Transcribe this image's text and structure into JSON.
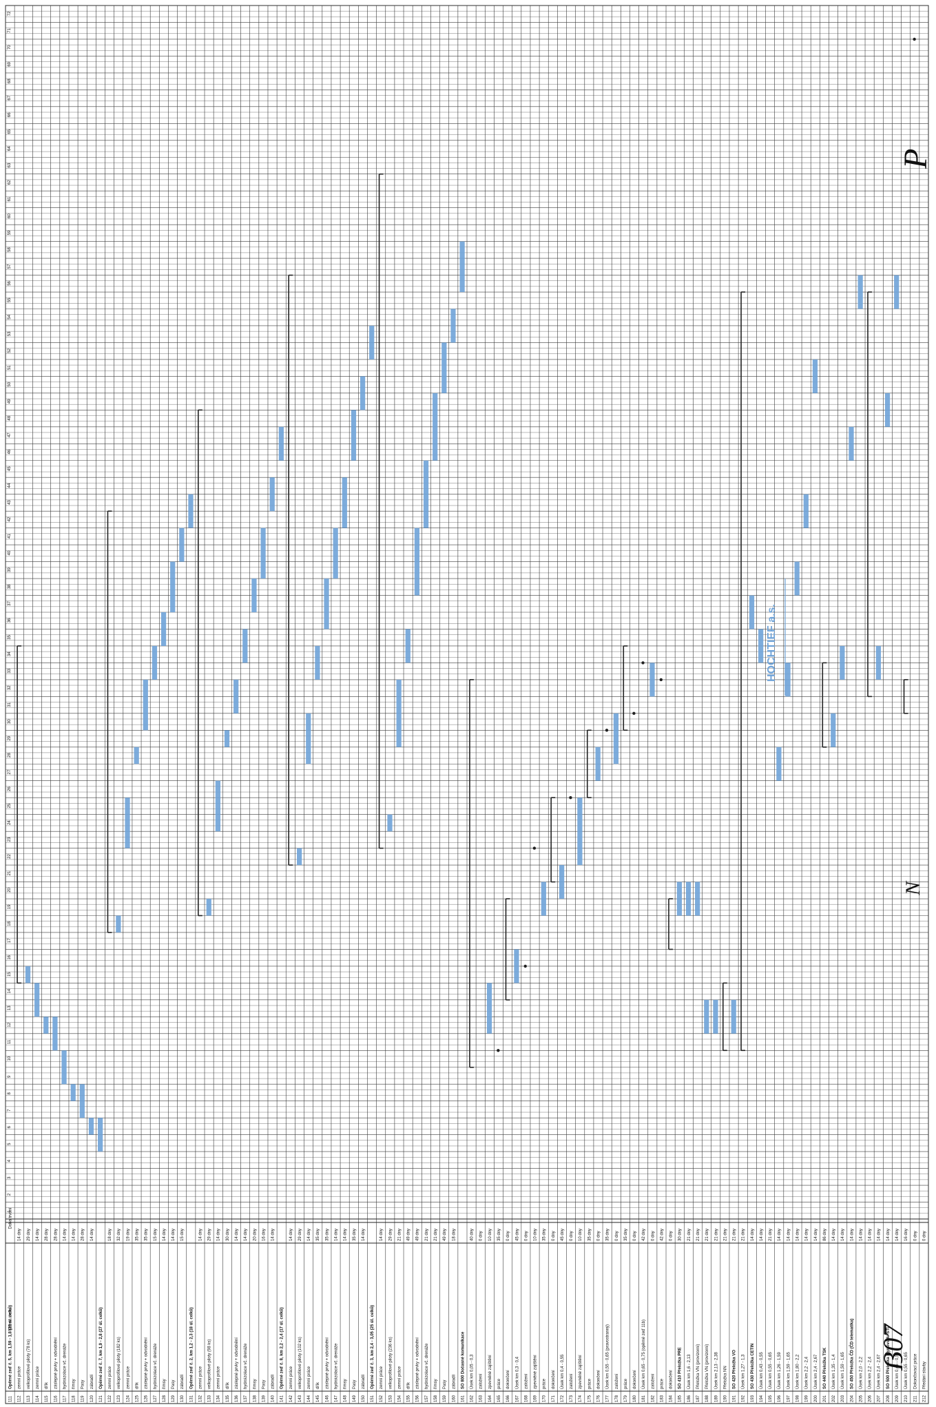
{
  "document": {
    "orientation": "rotated-90",
    "type": "gantt schedule scan"
  },
  "colors": {
    "bar": "#6fa3d8",
    "summary_bracket": "#222222",
    "grid": "#3a3a3a",
    "stamp": "#6fa3d8"
  },
  "header": {
    "column_labels": [
      "Doba trvání",
      "Název úkolu"
    ],
    "timeline_ticks": [
      "1",
      "2",
      "3",
      "4",
      "5",
      "6",
      "7",
      "8",
      "9",
      "10",
      "11",
      "12",
      "13",
      "14",
      "15",
      "16",
      "17",
      "18",
      "19",
      "20",
      "21",
      "22",
      "23",
      "24",
      "25",
      "26",
      "27",
      "28",
      "29",
      "30",
      "31",
      "32",
      "33",
      "34",
      "35",
      "36",
      "37",
      "38",
      "39",
      "40",
      "41",
      "42",
      "43",
      "44",
      "45",
      "46",
      "47",
      "48",
      "49",
      "50",
      "51",
      "52",
      "53",
      "54",
      "55",
      "56",
      "57",
      "58",
      "59",
      "60",
      "61",
      "62",
      "63",
      "64",
      "65",
      "66",
      "67",
      "68",
      "69",
      "70",
      "71",
      "72"
    ]
  },
  "rows": [
    {
      "id": "111",
      "name": "Opěrné zeď č. 5, km 1,59 - 1,8 (15 úl. celků)",
      "duration": "",
      "summary": true
    },
    {
      "id": "112",
      "name": "zemní práce",
      "duration": "14 dny"
    },
    {
      "id": "113",
      "name": "velkoprofilové piloty (78 ks)",
      "duration": "29 dny"
    },
    {
      "id": "114",
      "name": "zemní práce",
      "duration": "14 dny"
    },
    {
      "id": "115",
      "name": "dřík",
      "duration": "28 dny"
    },
    {
      "id": "116",
      "name": "záslepné prvky + odvodnění",
      "duration": "28 dny"
    },
    {
      "id": "117",
      "name": "hydroizolace vč. drenáže",
      "duration": "14 dny"
    },
    {
      "id": "118",
      "name": "římsy",
      "duration": "14 dny"
    },
    {
      "id": "119",
      "name": "Pasy",
      "duration": "28 dny"
    },
    {
      "id": "120",
      "name": "zábradlí",
      "duration": "14 dny"
    },
    {
      "id": "121",
      "name": "Opěrné zeď č. 7, km 1,9 - 2,8 (27 úl. celků)",
      "duration": "",
      "summary": true
    },
    {
      "id": "122",
      "name": "zemní práce",
      "duration": "18 dny"
    },
    {
      "id": "123",
      "name": "velkoprofilové piloty (182 ks)",
      "duration": "32 dny"
    },
    {
      "id": "124",
      "name": "zemní práce",
      "duration": "19 dny"
    },
    {
      "id": "125",
      "name": "dřík",
      "duration": "35 dny"
    },
    {
      "id": "126",
      "name": "záslepné prvky + odvodnění",
      "duration": "35 dny"
    },
    {
      "id": "127",
      "name": "hydroizolace vč. drenáže",
      "duration": "15 dny"
    },
    {
      "id": "128",
      "name": "římsy",
      "duration": "14 dny"
    },
    {
      "id": "129",
      "name": "Pasy",
      "duration": "14 dny"
    },
    {
      "id": "130",
      "name": "zábradlí",
      "duration": "15 dny"
    },
    {
      "id": "131",
      "name": "Opěrné zeď č. 2, km 1,2 - 2,3 (18 úl. celků)",
      "duration": "",
      "summary": true
    },
    {
      "id": "132",
      "name": "zemní práce",
      "duration": "14 dny"
    },
    {
      "id": "133",
      "name": "velkoprofilové piloty (98 ks)",
      "duration": "29 dny"
    },
    {
      "id": "134",
      "name": "zemní práce",
      "duration": "14 dny"
    },
    {
      "id": "135",
      "name": "dřík",
      "duration": "30 dny"
    },
    {
      "id": "136",
      "name": "záslepné prvky + odvodnění",
      "duration": "14 dny"
    },
    {
      "id": "137",
      "name": "hydroizolace vč. drenáže",
      "duration": "14 dny"
    },
    {
      "id": "138",
      "name": "římsy",
      "duration": "20 dny"
    },
    {
      "id": "139",
      "name": "Pasy",
      "duration": "16 dny"
    },
    {
      "id": "140",
      "name": "zábradlí",
      "duration": "14 dny"
    },
    {
      "id": "141",
      "name": "Opěrné zeď č. 8, km 2,2 - 2,4 (17 úl. celků)",
      "duration": "",
      "summary": true
    },
    {
      "id": "142",
      "name": "zemní práce",
      "duration": "14 dny"
    },
    {
      "id": "143",
      "name": "velkoprofilové piloty (102 ks)",
      "duration": "29 dny"
    },
    {
      "id": "144",
      "name": "zemní práce",
      "duration": "14 dny"
    },
    {
      "id": "145",
      "name": "dřík",
      "duration": "35 dny"
    },
    {
      "id": "146",
      "name": "záslepné prvky + odvodnění",
      "duration": "35 dny"
    },
    {
      "id": "147",
      "name": "hydroizolace vč. drenáže",
      "duration": "14 dny"
    },
    {
      "id": "148",
      "name": "římsy",
      "duration": "14 dny"
    },
    {
      "id": "149",
      "name": "Pasy",
      "duration": "35 dny"
    },
    {
      "id": "150",
      "name": "zábradlí",
      "duration": "14 dny"
    },
    {
      "id": "151",
      "name": "Opěrné zeď č. 3, km 2,4 - 3,05 (25 úl. celků)",
      "duration": "",
      "summary": true
    },
    {
      "id": "152",
      "name": "zemní práce",
      "duration": "14 dny"
    },
    {
      "id": "153",
      "name": "velkoprofilové piloty (236 ks)",
      "duration": "29 dny"
    },
    {
      "id": "154",
      "name": "zemní práce",
      "duration": "21 dny"
    },
    {
      "id": "155",
      "name": "dřík",
      "duration": "49 dny"
    },
    {
      "id": "156",
      "name": "záslepné prvky + odvodnění",
      "duration": "49 dny"
    },
    {
      "id": "157",
      "name": "hydroizolace vč. drenáže",
      "duration": "21 dny"
    },
    {
      "id": "158",
      "name": "římsy",
      "duration": "21 dny"
    },
    {
      "id": "159",
      "name": "Pasy",
      "duration": "49 dny"
    },
    {
      "id": "160",
      "name": "zábradlí",
      "duration": "18 dny"
    },
    {
      "id": "161",
      "name": "SO 800 Dočasné komunikace",
      "duration": "",
      "summary": true
    },
    {
      "id": "162",
      "name": "Úsek km 0,05 - 0,3",
      "duration": "40 dny"
    },
    {
      "id": "163",
      "name": "založení",
      "duration": "0 dny"
    },
    {
      "id": "164",
      "name": "zpevněné zajištění",
      "duration": "10 dny"
    },
    {
      "id": "165",
      "name": "práce",
      "duration": "35 dny"
    },
    {
      "id": "166",
      "name": "dokončení",
      "duration": "0 dny"
    },
    {
      "id": "167",
      "name": "Úsek km 0,3 - 0,4",
      "duration": "45 dny"
    },
    {
      "id": "168",
      "name": "založení",
      "duration": "0 dny"
    },
    {
      "id": "169",
      "name": "zpevněné zajištění",
      "duration": "10 dny"
    },
    {
      "id": "170",
      "name": "práce",
      "duration": "35 dny"
    },
    {
      "id": "171",
      "name": "dokončení",
      "duration": "0 dny"
    },
    {
      "id": "172",
      "name": "Úsek km 0,4 - 0,55",
      "duration": "45 dny"
    },
    {
      "id": "173",
      "name": "založení",
      "duration": "0 dny"
    },
    {
      "id": "174",
      "name": "zpevněné zajištění",
      "duration": "10 dny"
    },
    {
      "id": "175",
      "name": "práce",
      "duration": "35 dny"
    },
    {
      "id": "176",
      "name": "dokončení",
      "duration": "0 dny"
    },
    {
      "id": "177",
      "name": "Úsek km 0,55 - 0,65 (pravostranný)",
      "duration": "35 dny"
    },
    {
      "id": "178",
      "name": "založení",
      "duration": "0 dny"
    },
    {
      "id": "179",
      "name": "práce",
      "duration": "35 dny"
    },
    {
      "id": "180",
      "name": "dokončení",
      "duration": "0 dny"
    },
    {
      "id": "181",
      "name": "Úsek km 0,65 - 0,75 (opěrné zeď 11b)",
      "duration": "42 dny"
    },
    {
      "id": "182",
      "name": "založení",
      "duration": "0 dny"
    },
    {
      "id": "183",
      "name": "práce",
      "duration": "42 dny"
    },
    {
      "id": "184",
      "name": "dokončení",
      "duration": "0 dny"
    },
    {
      "id": "185",
      "name": "SO 410 Přeložka PRE",
      "duration": "30 dny",
      "summary": true
    },
    {
      "id": "186",
      "name": "Úsek km 1,6 - 2,13",
      "duration": "21 dny"
    },
    {
      "id": "187",
      "name": "Přeložka VN (provizorní)",
      "duration": "21 dny"
    },
    {
      "id": "188",
      "name": "Přeložka VN (provizorní)",
      "duration": "21 dny"
    },
    {
      "id": "189",
      "name": "Úsek km 2,13 - 2,38",
      "duration": "21 dny"
    },
    {
      "id": "190",
      "name": "Přeložka NN",
      "duration": "21 dny"
    },
    {
      "id": "191",
      "name": "SO 420 Přeložka VO",
      "duration": "21 dny",
      "summary": true
    },
    {
      "id": "192",
      "name": "Úsek km 1,27 - 1,3",
      "duration": "21 dny"
    },
    {
      "id": "193",
      "name": "SO 430 Přeložka CETIN",
      "duration": "14 dny",
      "summary": true
    },
    {
      "id": "194",
      "name": "Úsek km 0,43 - 0,55",
      "duration": "14 dny"
    },
    {
      "id": "195",
      "name": "Úsek km 0,55 - 0,65",
      "duration": "21 dny"
    },
    {
      "id": "196",
      "name": "Úsek km 1,26 - 1,59",
      "duration": "14 dny"
    },
    {
      "id": "197",
      "name": "Úsek km 1,59 - 1,65",
      "duration": "14 dny"
    },
    {
      "id": "198",
      "name": "Úsek km 1,80 - 2,2",
      "duration": "14 dny"
    },
    {
      "id": "199",
      "name": "Úsek km 2,2 - 2,4",
      "duration": "14 dny"
    },
    {
      "id": "200",
      "name": "Úsek km 2,4 - 2,67",
      "duration": "14 dny"
    },
    {
      "id": "201",
      "name": "SO 440 Přeložka TSK",
      "duration": "86 dny",
      "summary": true
    },
    {
      "id": "202",
      "name": "Úsek km 1,35 - 1,4",
      "duration": "14 dny"
    },
    {
      "id": "203",
      "name": "Úsek km 1,59 - 1,65",
      "duration": "14 dny"
    },
    {
      "id": "204",
      "name": "SO 450 Přeložka ČD (ČD telematika)",
      "duration": "14 dny",
      "summary": true
    },
    {
      "id": "205",
      "name": "Úsek km 2,0 - 2,2",
      "duration": "14 dny"
    },
    {
      "id": "206",
      "name": "Úsek km 2,2 - 2,4",
      "duration": "14 dny"
    },
    {
      "id": "207",
      "name": "Úsek km 2,4 - 2,67",
      "duration": "14 dny"
    },
    {
      "id": "208",
      "name": "SO 500 Přeložka plynovodu STL",
      "duration": "14 dny",
      "summary": true
    },
    {
      "id": "209",
      "name": "Úsek km 0,45 - 0,55",
      "duration": "14 dny"
    },
    {
      "id": "210",
      "name": "Úsek km 0,55 - 0,65",
      "duration": "16 dny"
    },
    {
      "id": "211",
      "name": "Dokončovací práce",
      "duration": "0 dny"
    },
    {
      "id": "212",
      "name": "Předání stavby",
      "duration": "0 dny"
    }
  ],
  "bars": [
    {
      "row": 1,
      "start": 14,
      "len": 1
    },
    {
      "row": 2,
      "start": 12,
      "len": 2
    },
    {
      "row": 3,
      "start": 11,
      "len": 1
    },
    {
      "row": 4,
      "start": 10,
      "len": 2
    },
    {
      "row": 5,
      "start": 8,
      "len": 2
    },
    {
      "row": 6,
      "start": 7,
      "len": 1
    },
    {
      "row": 7,
      "start": 6,
      "len": 2
    },
    {
      "row": 8,
      "start": 5,
      "len": 1
    },
    {
      "row": 9,
      "start": 4,
      "len": 2
    },
    {
      "row": 11,
      "start": 17,
      "len": 1
    },
    {
      "row": 12,
      "start": 22,
      "len": 3
    },
    {
      "row": 13,
      "start": 27,
      "len": 1
    },
    {
      "row": 14,
      "start": 29,
      "len": 3
    },
    {
      "row": 15,
      "start": 32,
      "len": 2
    },
    {
      "row": 16,
      "start": 34,
      "len": 2
    },
    {
      "row": 17,
      "start": 36,
      "len": 3
    },
    {
      "row": 18,
      "start": 39,
      "len": 2
    },
    {
      "row": 19,
      "start": 41,
      "len": 2
    },
    {
      "row": 21,
      "start": 18,
      "len": 1
    },
    {
      "row": 22,
      "start": 23,
      "len": 3
    },
    {
      "row": 23,
      "start": 28,
      "len": 1
    },
    {
      "row": 24,
      "start": 30,
      "len": 2
    },
    {
      "row": 25,
      "start": 33,
      "len": 2
    },
    {
      "row": 26,
      "start": 36,
      "len": 2
    },
    {
      "row": 27,
      "start": 38,
      "len": 3
    },
    {
      "row": 28,
      "start": 42,
      "len": 2
    },
    {
      "row": 29,
      "start": 45,
      "len": 2
    },
    {
      "row": 31,
      "start": 21,
      "len": 1
    },
    {
      "row": 32,
      "start": 27,
      "len": 3
    },
    {
      "row": 33,
      "start": 32,
      "len": 2
    },
    {
      "row": 34,
      "start": 35,
      "len": 3
    },
    {
      "row": 35,
      "start": 38,
      "len": 3
    },
    {
      "row": 36,
      "start": 41,
      "len": 3
    },
    {
      "row": 37,
      "start": 45,
      "len": 3
    },
    {
      "row": 38,
      "start": 48,
      "len": 2
    },
    {
      "row": 39,
      "start": 51,
      "len": 2
    },
    {
      "row": 41,
      "start": 23,
      "len": 1
    },
    {
      "row": 42,
      "start": 28,
      "len": 4
    },
    {
      "row": 43,
      "start": 33,
      "len": 2
    },
    {
      "row": 44,
      "start": 37,
      "len": 4
    },
    {
      "row": 45,
      "start": 41,
      "len": 4
    },
    {
      "row": 46,
      "start": 45,
      "len": 4
    },
    {
      "row": 47,
      "start": 49,
      "len": 3
    },
    {
      "row": 48,
      "start": 52,
      "len": 2
    },
    {
      "row": 49,
      "start": 55,
      "len": 3
    },
    {
      "row": 52,
      "start": 11,
      "len": 3
    },
    {
      "row": 55,
      "start": 14,
      "len": 2
    },
    {
      "row": 58,
      "start": 18,
      "len": 2
    },
    {
      "row": 60,
      "start": 19,
      "len": 2
    },
    {
      "row": 62,
      "start": 21,
      "len": 4
    },
    {
      "row": 64,
      "start": 26,
      "len": 2
    },
    {
      "row": 66,
      "start": 27,
      "len": 3
    },
    {
      "row": 70,
      "start": 31,
      "len": 2
    },
    {
      "row": 73,
      "start": 18,
      "len": 2
    },
    {
      "row": 74,
      "start": 18,
      "len": 2
    },
    {
      "row": 75,
      "start": 18,
      "len": 2
    },
    {
      "row": 76,
      "start": 11,
      "len": 2
    },
    {
      "row": 77,
      "start": 11,
      "len": 2
    },
    {
      "row": 79,
      "start": 11,
      "len": 2
    },
    {
      "row": 81,
      "start": 35,
      "len": 2
    },
    {
      "row": 82,
      "start": 33,
      "len": 2
    },
    {
      "row": 84,
      "start": 26,
      "len": 2
    },
    {
      "row": 85,
      "start": 31,
      "len": 2
    },
    {
      "row": 86,
      "start": 37,
      "len": 2
    },
    {
      "row": 87,
      "start": 41,
      "len": 2
    },
    {
      "row": 88,
      "start": 49,
      "len": 2
    },
    {
      "row": 90,
      "start": 28,
      "len": 2
    },
    {
      "row": 91,
      "start": 32,
      "len": 2
    },
    {
      "row": 92,
      "start": 45,
      "len": 2
    },
    {
      "row": 93,
      "start": 54,
      "len": 2
    },
    {
      "row": 95,
      "start": 32,
      "len": 2
    },
    {
      "row": 96,
      "start": 47,
      "len": 2
    },
    {
      "row": 97,
      "start": 54,
      "len": 2
    }
  ],
  "summary_brackets": [
    {
      "row": 0,
      "start": 14,
      "len": 20
    },
    {
      "row": 10,
      "start": 17,
      "len": 25
    },
    {
      "row": 20,
      "start": 18,
      "len": 30
    },
    {
      "row": 30,
      "start": 21,
      "len": 35
    },
    {
      "row": 40,
      "start": 22,
      "len": 40
    },
    {
      "row": 50,
      "start": 9,
      "len": 23
    },
    {
      "row": 54,
      "start": 13,
      "len": 6
    },
    {
      "row": 59,
      "start": 20,
      "len": 5
    },
    {
      "row": 63,
      "start": 25,
      "len": 4
    },
    {
      "row": 67,
      "start": 29,
      "len": 5
    },
    {
      "row": 72,
      "start": 16,
      "len": 3
    },
    {
      "row": 78,
      "start": 10,
      "len": 4
    },
    {
      "row": 80,
      "start": 10,
      "len": 45
    },
    {
      "row": 89,
      "start": 28,
      "len": 5
    },
    {
      "row": 94,
      "start": 31,
      "len": 24
    },
    {
      "row": 98,
      "start": 30,
      "len": 2
    }
  ],
  "milestones": [
    {
      "row": 53,
      "pos": 10
    },
    {
      "row": 56,
      "pos": 15
    },
    {
      "row": 57,
      "pos": 22
    },
    {
      "row": 61,
      "pos": 25
    },
    {
      "row": 65,
      "pos": 29
    },
    {
      "row": 68,
      "pos": 30
    },
    {
      "row": 69,
      "pos": 33
    },
    {
      "row": 71,
      "pos": 32
    },
    {
      "row": 99,
      "pos": 70
    },
    {
      "row": 100,
      "pos": 73
    }
  ],
  "annotations": {
    "stamp": "HOCHTIEF a.s.",
    "signature_left": "ẞ07",
    "signature_marks": [
      "P",
      "N"
    ]
  }
}
